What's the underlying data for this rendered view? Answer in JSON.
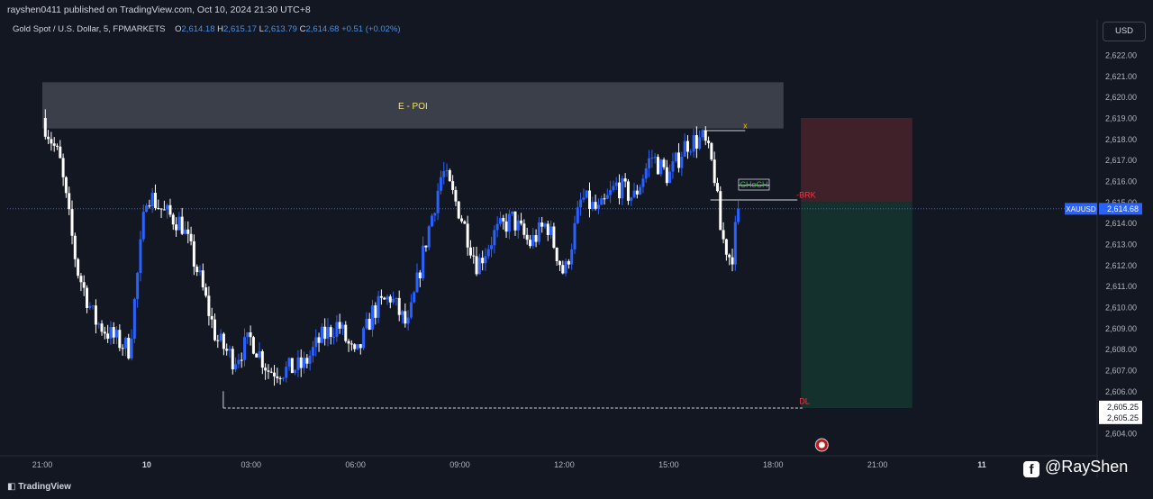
{
  "header": {
    "publisher": "rayshen0411 published on TradingView.com, Oct 10, 2024 21:30 UTC+8"
  },
  "legend": {
    "symbol": "Gold Spot / U.S. Dollar, 5, FPMARKETS",
    "open_label": "O",
    "open": "2,614.18",
    "high_label": "H",
    "high": "2,615.17",
    "low_label": "L",
    "low": "2,613.79",
    "close_label": "C",
    "close": "2,614.68",
    "change": "+0.51 (+0.02%)"
  },
  "currency_button": "USD",
  "branding": {
    "tradingview": "TradingView",
    "watermark": "@RayShen",
    "facebook_glyph": "f"
  },
  "colors": {
    "background": "#131722",
    "up_candle": "#2962ff",
    "down_candle": "#ffffff",
    "poi_zone": "#434651",
    "stop_zone": "#42222b",
    "target_zone": "#15332e",
    "price_line": "#2962ff",
    "choch": "#4caf50",
    "brk": "#f23645",
    "x_marker": "#f0b90b"
  },
  "chart_data": {
    "type": "candlestick",
    "symbol": "XAUUSD",
    "timeframe": "5",
    "ylim": [
      2603.6,
      2622.6
    ],
    "y_ticks": [
      "2,622.00",
      "2,621.00",
      "2,620.00",
      "2,619.00",
      "2,618.00",
      "2,617.00",
      "2,616.00",
      "2,615.00",
      "2,614.00",
      "2,613.00",
      "2,612.00",
      "2,611.00",
      "2,610.00",
      "2,609.00",
      "2,608.00",
      "2,607.00",
      "2,606.00",
      "2,605.00",
      "2,604.00"
    ],
    "y_tick_values": [
      2622,
      2621,
      2620,
      2619,
      2618,
      2617,
      2616,
      2615,
      2614,
      2613,
      2612,
      2611,
      2610,
      2609,
      2608,
      2607,
      2606,
      2605,
      2604
    ],
    "x_ticks": [
      "21:00",
      "10",
      "03:00",
      "06:00",
      "09:00",
      "12:00",
      "15:00",
      "18:00",
      "21:00",
      "11"
    ],
    "x_tick_hours": [
      0,
      3,
      6,
      9,
      12,
      15,
      18,
      21,
      24,
      27
    ],
    "series": [
      {
        "t": 0,
        "p": 2619.0
      },
      {
        "t": 0.5,
        "p": 2617.0
      },
      {
        "t": 1.0,
        "p": 2611.8
      },
      {
        "t": 1.5,
        "p": 2609.4
      },
      {
        "t": 2.0,
        "p": 2608.6
      },
      {
        "t": 2.5,
        "p": 2608.0
      },
      {
        "t": 3.0,
        "p": 2615.5
      },
      {
        "t": 3.5,
        "p": 2614.5
      },
      {
        "t": 4.0,
        "p": 2614.0
      },
      {
        "t": 4.5,
        "p": 2611.5
      },
      {
        "t": 5.0,
        "p": 2608.5
      },
      {
        "t": 5.5,
        "p": 2607.5
      },
      {
        "t": 6.0,
        "p": 2608.5
      },
      {
        "t": 6.5,
        "p": 2607.0
      },
      {
        "t": 7.0,
        "p": 2607.0
      },
      {
        "t": 7.5,
        "p": 2607.2
      },
      {
        "t": 8.0,
        "p": 2608.5
      },
      {
        "t": 8.5,
        "p": 2609.2
      },
      {
        "t": 9.0,
        "p": 2607.5
      },
      {
        "t": 9.5,
        "p": 2609.8
      },
      {
        "t": 10.0,
        "p": 2610.5
      },
      {
        "t": 10.5,
        "p": 2609.0
      },
      {
        "t": 11.0,
        "p": 2613.0
      },
      {
        "t": 11.5,
        "p": 2616.5
      },
      {
        "t": 12.0,
        "p": 2614.5
      },
      {
        "t": 12.5,
        "p": 2612.0
      },
      {
        "t": 13.0,
        "p": 2613.5
      },
      {
        "t": 13.5,
        "p": 2614.2
      },
      {
        "t": 14.0,
        "p": 2613.0
      },
      {
        "t": 14.5,
        "p": 2614.0
      },
      {
        "t": 15.0,
        "p": 2611.5
      },
      {
        "t": 15.5,
        "p": 2615.2
      },
      {
        "t": 16.0,
        "p": 2614.5
      },
      {
        "t": 16.5,
        "p": 2615.8
      },
      {
        "t": 17.0,
        "p": 2615.2
      },
      {
        "t": 17.5,
        "p": 2617.2
      },
      {
        "t": 18.0,
        "p": 2616.2
      },
      {
        "t": 18.5,
        "p": 2617.8
      },
      {
        "t": 19.0,
        "p": 2618.0
      },
      {
        "t": 19.3,
        "p": 2616.5
      },
      {
        "t": 19.5,
        "p": 2613.5
      },
      {
        "t": 19.8,
        "p": 2612.2
      },
      {
        "t": 20.0,
        "p": 2614.68
      }
    ],
    "last_price_label": "XAUUSD",
    "last_price": "2,614.68",
    "last_price_value": 2614.68,
    "target_label_1": "2,605.25",
    "target_label_2": "2,605.25",
    "zones": [
      {
        "label": "E - POI",
        "t0": 0,
        "t1": 21.3,
        "y0": 2618.5,
        "y1": 2620.7
      },
      {
        "label": "",
        "t0": 21.8,
        "t1": 25.0,
        "y0": 2615.0,
        "y1": 2619.0
      },
      {
        "label": "",
        "t0": 21.8,
        "t1": 25.0,
        "y0": 2605.2,
        "y1": 2615.0
      }
    ],
    "annotations": [
      {
        "label": "x",
        "t": 20.2,
        "y": 2618.5
      },
      {
        "label": "CHoCH",
        "t": 20.45,
        "y": 2615.7
      },
      {
        "label": "-BRK",
        "t": 21.95,
        "y": 2615.2
      },
      {
        "label": "DL",
        "t": 21.9,
        "y": 2605.4
      }
    ]
  }
}
